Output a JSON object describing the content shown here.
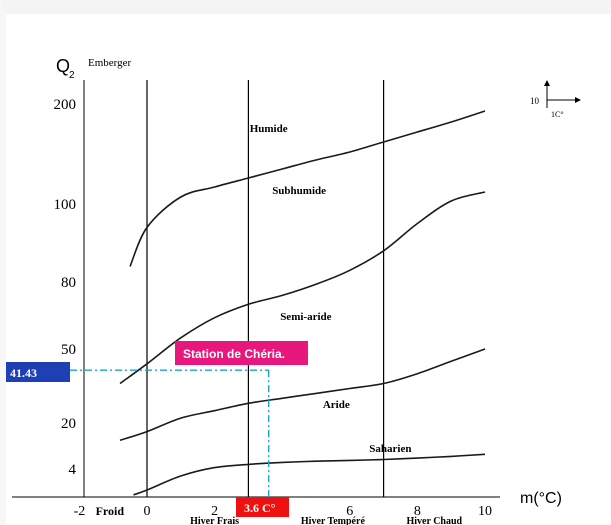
{
  "chart_data": {
    "type": "line",
    "title": "Emberger",
    "ylabel": "Q",
    "ylabel_sub": "2",
    "xlabel": "m(°C)",
    "x_ticks": [
      "-2",
      "0",
      "2",
      "4",
      "6",
      "8",
      "10"
    ],
    "x_tick_values": [
      -2,
      0,
      2,
      4,
      6,
      8,
      10
    ],
    "xlim": [
      -2,
      10.2
    ],
    "y_ticks": [
      "200",
      "100",
      "80",
      "50",
      "20",
      "4"
    ],
    "x_zones": [
      {
        "label": "Froid",
        "x": -1.1
      },
      {
        "label": "Hiver Frais",
        "x": 2
      },
      {
        "label": "Hiver Tempéré",
        "x": 5.5
      },
      {
        "label": "Hiver Chaud",
        "x": 8.5
      }
    ],
    "vertical_lines_x": [
      0,
      3,
      7
    ],
    "zones": [
      {
        "label": "Humide",
        "x": 3.6,
        "level": 172
      },
      {
        "label": "Subhumide",
        "x": 4.5,
        "level": 110
      },
      {
        "label": "Semi-aride",
        "x": 4.7,
        "level": 63
      },
      {
        "label": "Aride",
        "x": 5.6,
        "level": 26
      },
      {
        "label": "Saharien",
        "x": 7.2,
        "level": 10
      }
    ],
    "series": [
      {
        "x": [
          -0.5,
          0,
          1,
          2,
          3,
          4,
          5,
          6,
          7,
          8,
          9,
          10
        ],
        "y": [
          84,
          94,
          107,
          117,
          126,
          135,
          144,
          152,
          162,
          172,
          182,
          193
        ]
      },
      {
        "x": [
          -0.8,
          0,
          1,
          2,
          3,
          4,
          5,
          6,
          7,
          8,
          9,
          10
        ],
        "y": [
          36,
          44,
          55,
          64,
          70,
          74,
          79,
          83,
          88,
          95,
          103,
          112
        ]
      },
      {
        "x": [
          -0.8,
          0,
          1,
          2,
          3,
          4,
          5,
          6,
          7,
          8,
          9,
          10
        ],
        "y": [
          14,
          17,
          22,
          25,
          28,
          30,
          32,
          34,
          36,
          40,
          45,
          50
        ]
      },
      {
        "x": [
          -0.4,
          0,
          1,
          2,
          3,
          4,
          5,
          6,
          7,
          8,
          9,
          10
        ],
        "y": [
          0.3,
          1,
          3,
          4.5,
          5.6,
          6.3,
          6.7,
          7,
          7.3,
          7.8,
          8.4,
          9.1
        ]
      }
    ],
    "station": {
      "label": "Station de Chéria.",
      "q2_label": "41.43",
      "m_label": "3.6 C°",
      "q2": 41.43,
      "m": 3.6
    },
    "scale_note": {
      "top": "10",
      "bottom": "1C°"
    },
    "colors": {
      "curve": "#1a1a1a",
      "axis": "#000000",
      "station_box": "#e8177d",
      "q2_box": "#1f3fb5",
      "m_box": "#ee1111",
      "guide": "#1aa4c9"
    }
  }
}
